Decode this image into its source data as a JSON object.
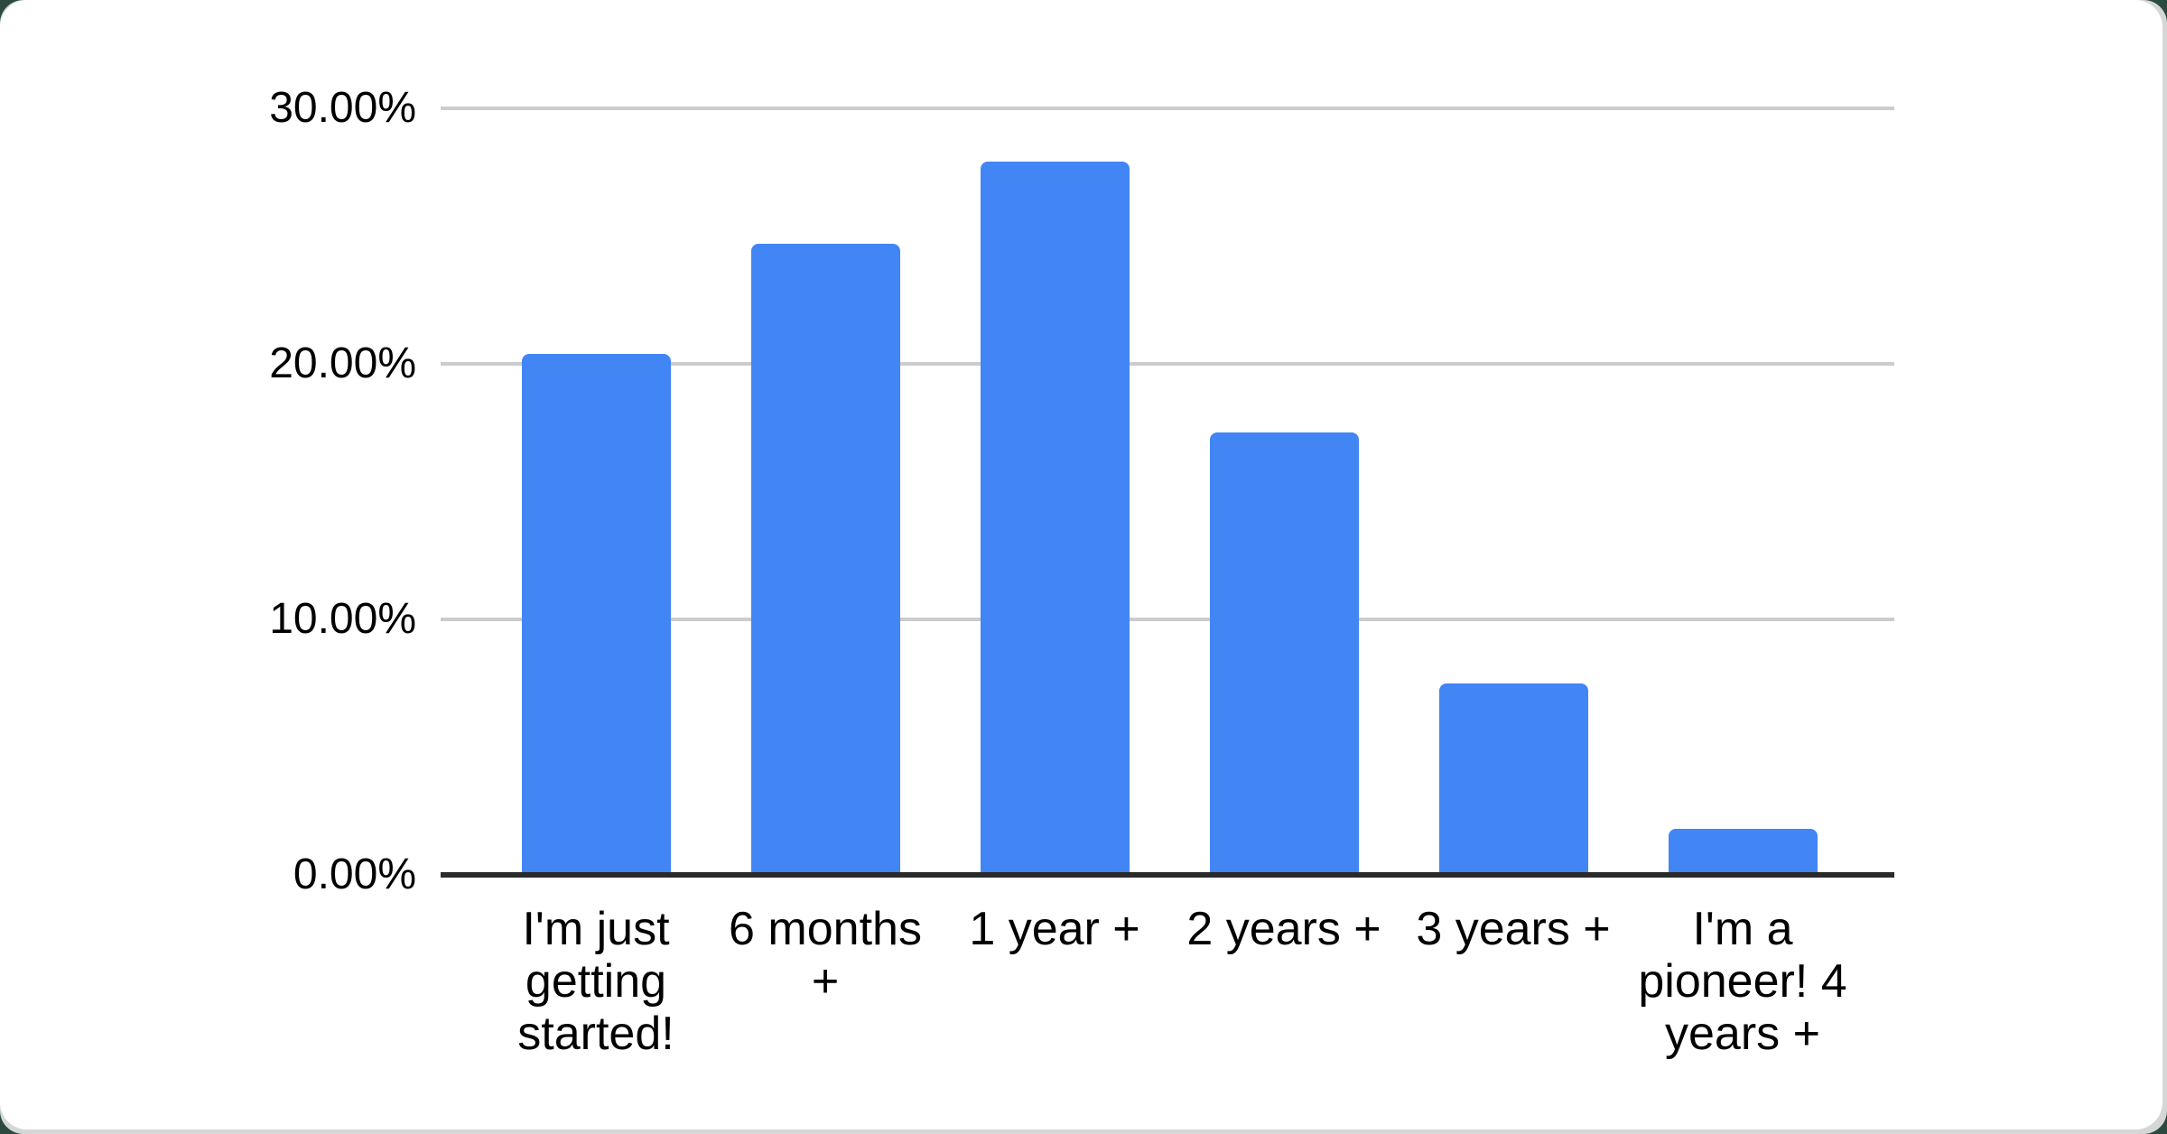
{
  "chart_data": {
    "type": "bar",
    "categories": [
      "I'm just getting started!",
      "6 months +",
      "1 year +",
      "2 years +",
      "3 years +",
      "I'm a pioneer! 4 years +"
    ],
    "values": [
      20.4,
      24.7,
      27.9,
      17.3,
      7.5,
      1.8
    ],
    "value_format": "percent",
    "title": "",
    "xlabel": "",
    "ylabel": "",
    "ylim": [
      0,
      30
    ],
    "yticks": [
      0,
      10,
      20,
      30
    ],
    "ytick_labels": [
      "0.00%",
      "10.00%",
      "20.00%",
      "30.00%"
    ],
    "grid": true,
    "legend": "none"
  },
  "style": {
    "bar_color": "#4285f4",
    "gridline_color": "#cccccc",
    "axis_line_color": "#2a2a2a",
    "label_color": "#000000",
    "card_color": "#ffffff",
    "edge_color": "#d4d7d6",
    "page_corner_color": "#2c4a40"
  }
}
